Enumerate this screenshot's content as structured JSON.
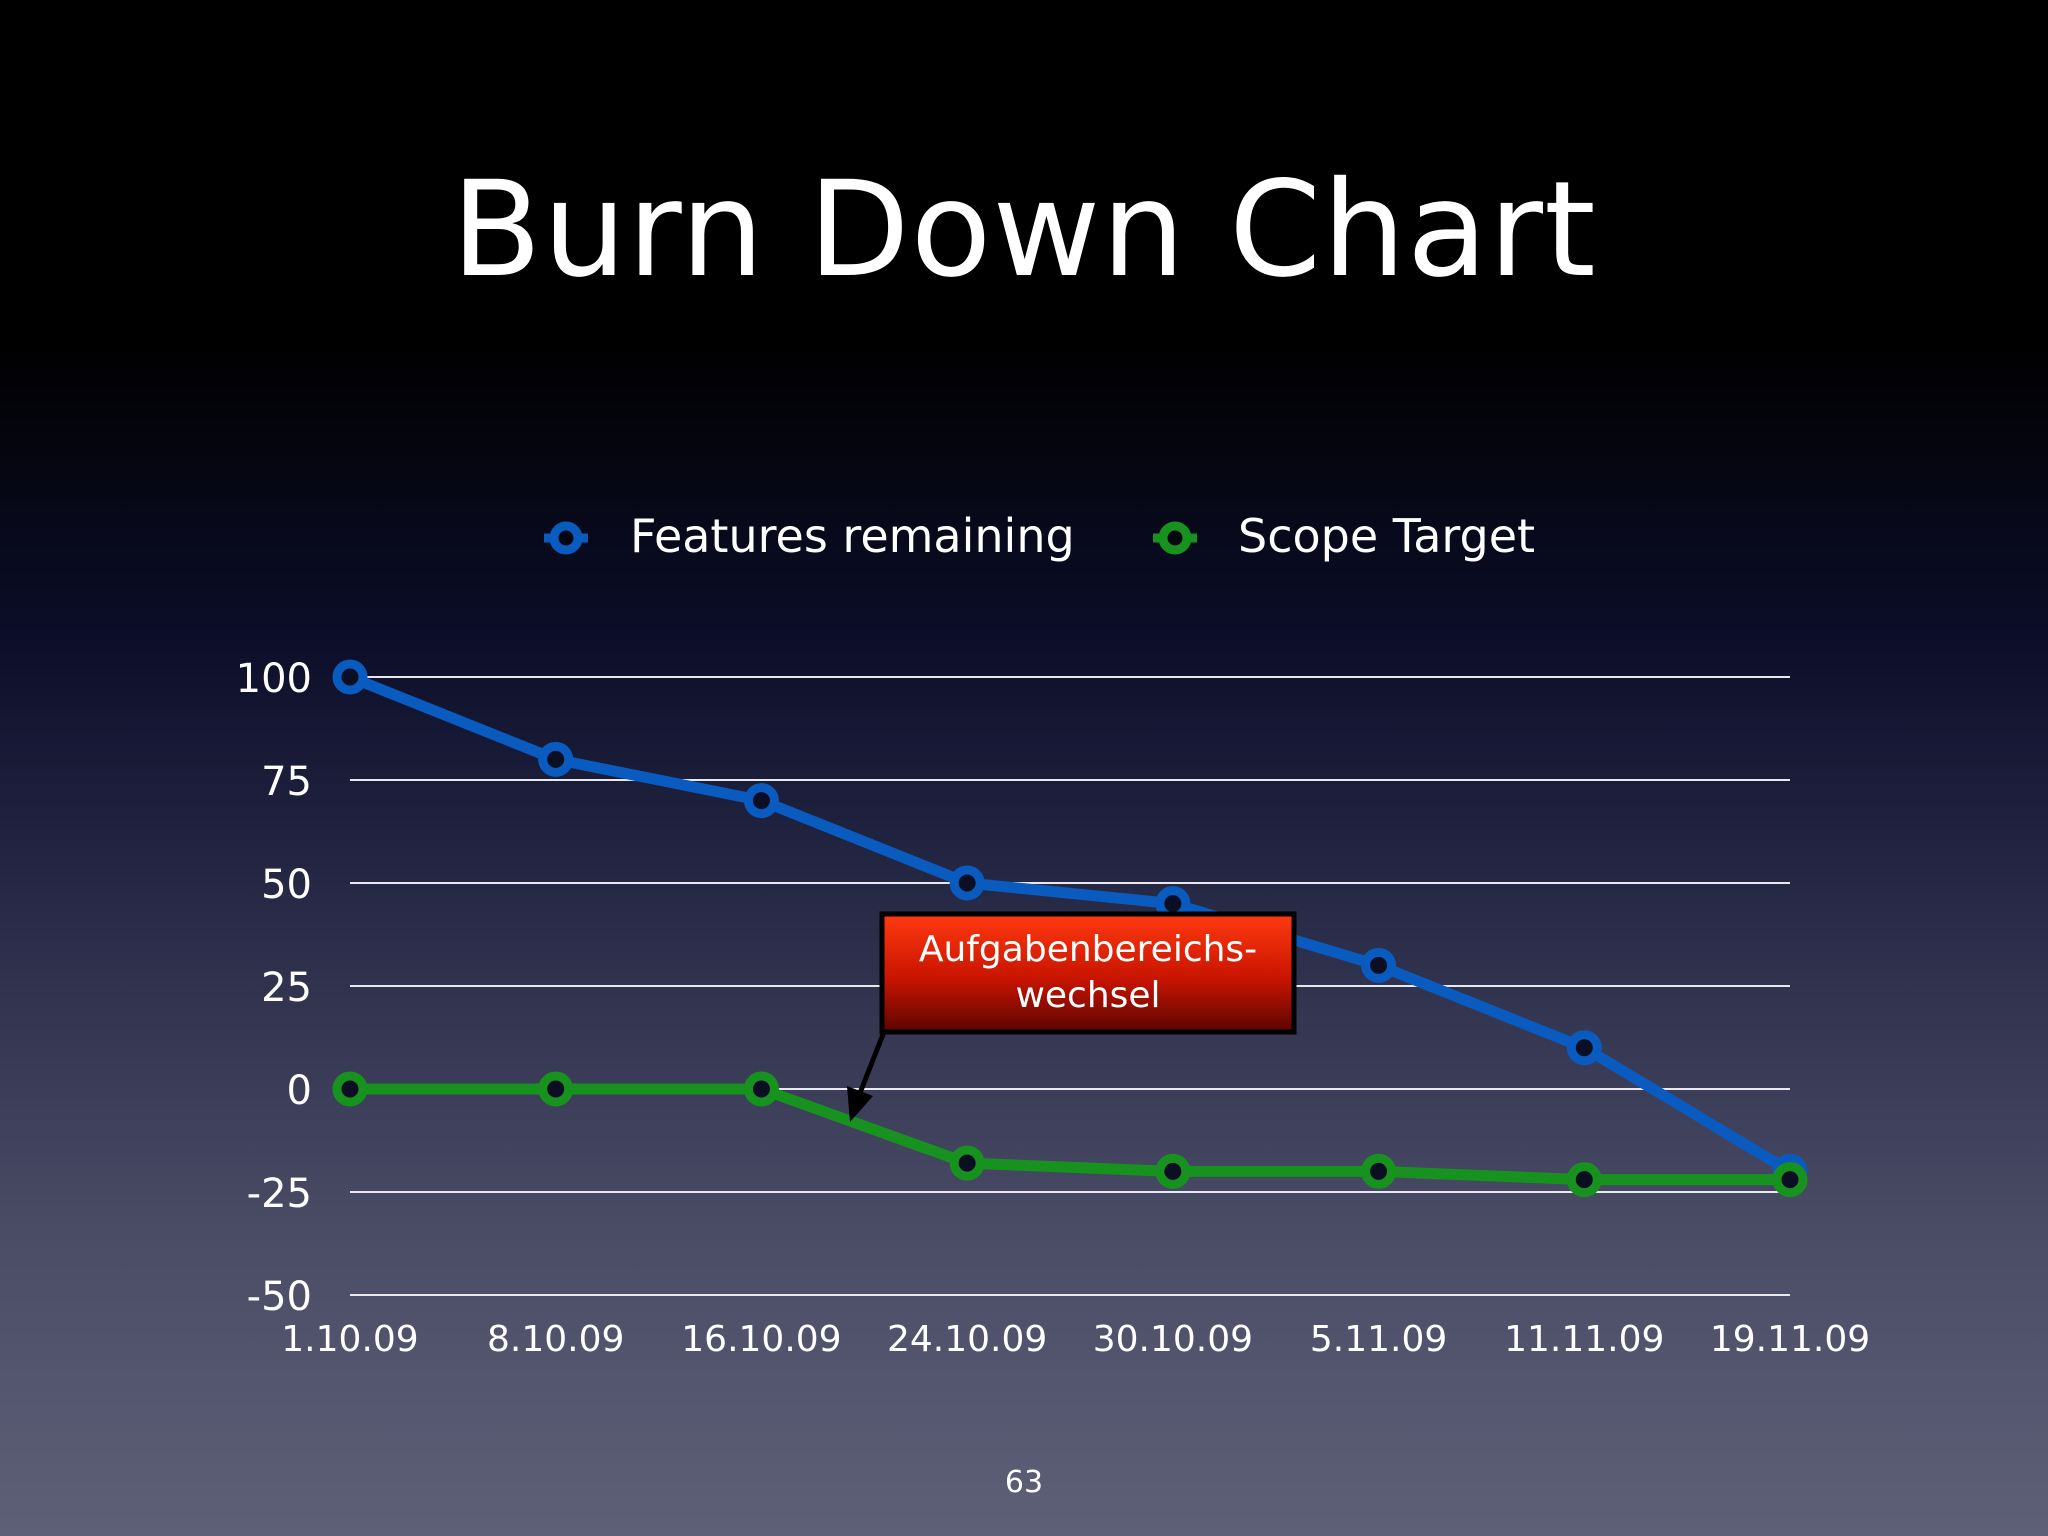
{
  "slide": {
    "title": "Burn Down Chart",
    "page_number": "63"
  },
  "colors": {
    "features_remaining": "#0a5bbf",
    "scope_target": "#17921f",
    "callout": "#d81800"
  },
  "chart_data": {
    "type": "line",
    "categories": [
      "1.10.09",
      "8.10.09",
      "16.10.09",
      "24.10.09",
      "30.10.09",
      "5.11.09",
      "11.11.09",
      "19.11.09"
    ],
    "ylim": [
      -50,
      100
    ],
    "yticks": [
      100,
      75,
      50,
      25,
      0,
      -25,
      -50
    ],
    "grid": true,
    "legend_position": "top",
    "series": [
      {
        "name": "Features remaining",
        "values": [
          100,
          80,
          70,
          50,
          45,
          30,
          10,
          -20
        ]
      },
      {
        "name": "Scope Target",
        "values": [
          0,
          0,
          0,
          -18,
          -20,
          -20,
          -22,
          -22
        ]
      }
    ],
    "annotation": {
      "lines": [
        "Aufgabenbereichs-",
        "wechsel"
      ]
    }
  }
}
